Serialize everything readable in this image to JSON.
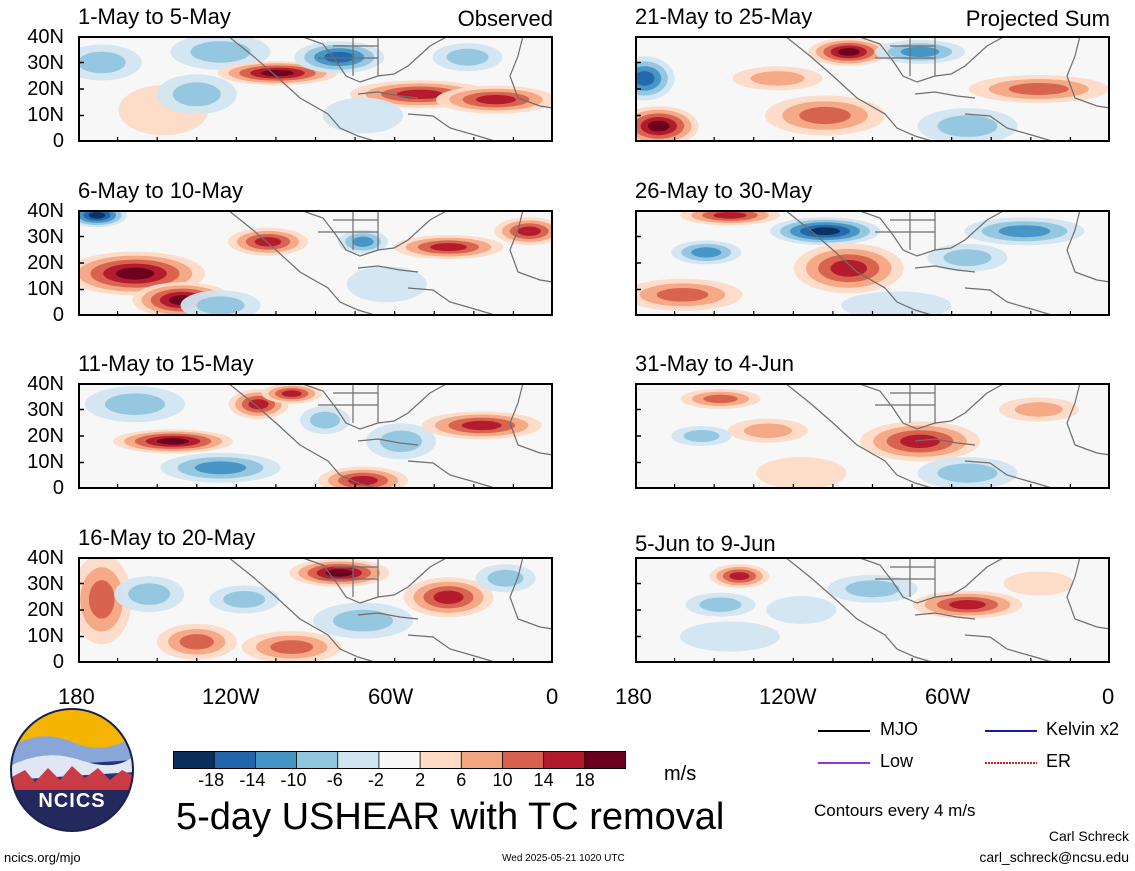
{
  "colors": {
    "scale": [
      "#0b2f5c",
      "#2166ac",
      "#4393c3",
      "#92c5de",
      "#d1e5f0",
      "#f7f7f7",
      "#fddbc7",
      "#f4a582",
      "#d6604d",
      "#b2182b",
      "#67001f"
    ],
    "coastline": "#6e6e6e",
    "frame": "#000000"
  },
  "panels": [
    {
      "id": "p1",
      "title": "1-May to 5-May",
      "corner": "Observed"
    },
    {
      "id": "p2",
      "title": "6-May to 10-May",
      "corner": ""
    },
    {
      "id": "p3",
      "title": "11-May to 15-May",
      "corner": ""
    },
    {
      "id": "p4",
      "title": "16-May to 20-May",
      "corner": ""
    },
    {
      "id": "p5",
      "title": "21-May to 25-May",
      "corner": "Projected Sum"
    },
    {
      "id": "p6",
      "title": "26-May to 30-May",
      "corner": ""
    },
    {
      "id": "p7",
      "title": "31-May to 4-Jun",
      "corner": ""
    },
    {
      "id": "p8",
      "title": "5-Jun to 9-Jun",
      "corner": ""
    }
  ],
  "yaxis": [
    "40N",
    "30N",
    "20N",
    "10N",
    "0"
  ],
  "xaxis": [
    "180",
    "120W",
    "60W",
    "0"
  ],
  "colorbar": {
    "ticks": [
      "-18",
      "-14",
      "-10",
      "-6",
      "-2",
      "2",
      "6",
      "10",
      "14",
      "18"
    ],
    "unit": "m/s"
  },
  "title": "5-day USHEAR with TC removal",
  "legend": [
    {
      "label": "MJO",
      "color": "#000000"
    },
    {
      "label": "Kelvin x2",
      "color": "#1a1aa6"
    },
    {
      "label": "Low",
      "color": "#9b30d9"
    },
    {
      "label": "ER",
      "color": "#d42020"
    }
  ],
  "contours_note": "Contours every 4 m/s",
  "logo_text": "NCICS",
  "footer": {
    "left": "ncics.org/mjo",
    "center": "Wed 2025-05-21 1020 UTC",
    "author": "Carl Schreck",
    "email": "carl_schreck@ncsu.edu"
  }
}
